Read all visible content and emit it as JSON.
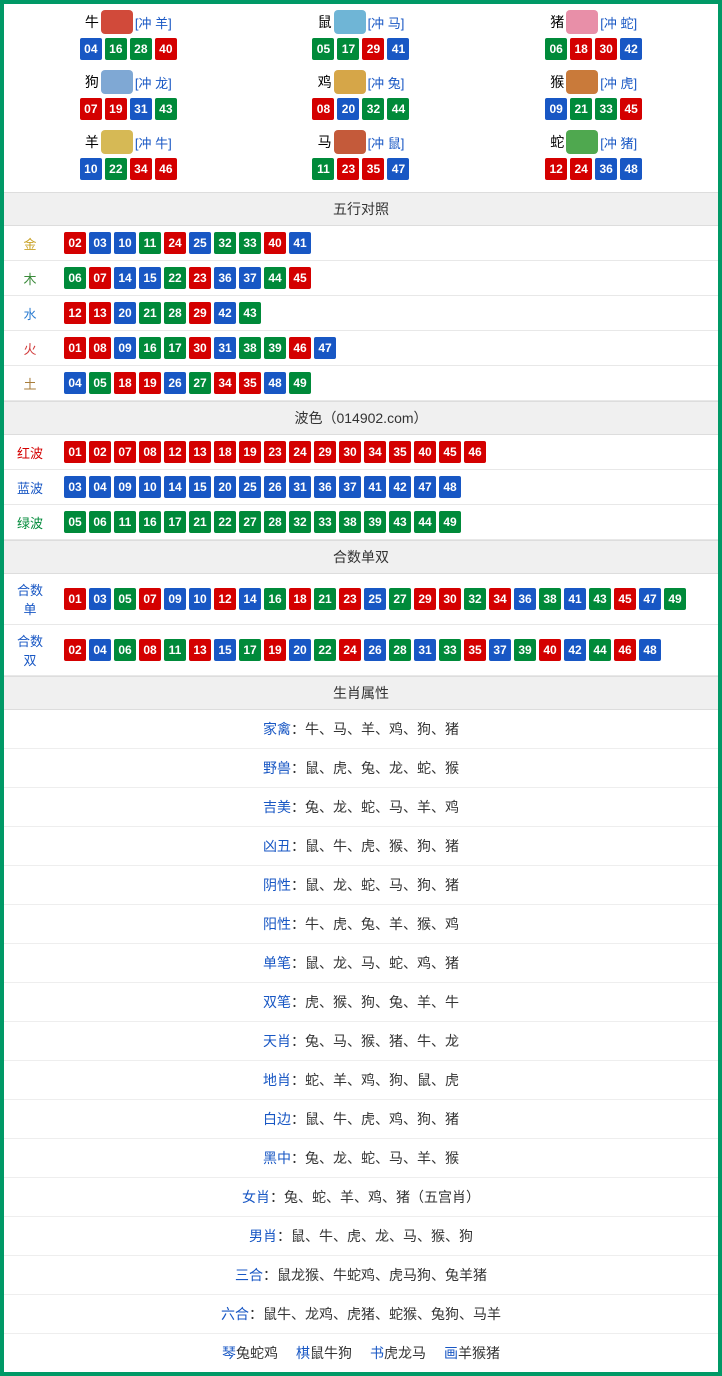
{
  "colors": {
    "red": "#d40000",
    "blue": "#1857c4",
    "green": "#008a3a",
    "border": "#009966",
    "section_bg": "#f0f0f0",
    "label_link": "#1857c4"
  },
  "number_color_map": {
    "01": "red",
    "02": "red",
    "07": "red",
    "08": "red",
    "12": "red",
    "13": "red",
    "18": "red",
    "19": "red",
    "23": "red",
    "24": "red",
    "29": "red",
    "30": "red",
    "34": "red",
    "35": "red",
    "40": "red",
    "45": "red",
    "46": "red",
    "03": "blue",
    "04": "blue",
    "09": "blue",
    "10": "blue",
    "14": "blue",
    "15": "blue",
    "20": "blue",
    "25": "blue",
    "26": "blue",
    "31": "blue",
    "36": "blue",
    "37": "blue",
    "41": "blue",
    "42": "blue",
    "47": "blue",
    "48": "blue",
    "05": "green",
    "06": "green",
    "11": "green",
    "16": "green",
    "17": "green",
    "21": "green",
    "22": "green",
    "27": "green",
    "28": "green",
    "32": "green",
    "33": "green",
    "38": "green",
    "39": "green",
    "43": "green",
    "44": "green",
    "49": "green"
  },
  "zodiac": [
    {
      "name": "牛",
      "icon_color": "#d14a3a",
      "conflict": "[冲 羊]",
      "nums": [
        "04",
        "16",
        "28",
        "40"
      ]
    },
    {
      "name": "鼠",
      "icon_color": "#6fb5d6",
      "conflict": "[冲 马]",
      "nums": [
        "05",
        "17",
        "29",
        "41"
      ]
    },
    {
      "name": "猪",
      "icon_color": "#e88fa8",
      "conflict": "[冲 蛇]",
      "nums": [
        "06",
        "18",
        "30",
        "42"
      ]
    },
    {
      "name": "狗",
      "icon_color": "#7fa8d4",
      "conflict": "[冲 龙]",
      "nums": [
        "07",
        "19",
        "31",
        "43"
      ]
    },
    {
      "name": "鸡",
      "icon_color": "#d6a648",
      "conflict": "[冲 兔]",
      "nums": [
        "08",
        "20",
        "32",
        "44"
      ]
    },
    {
      "name": "猴",
      "icon_color": "#c97a3a",
      "conflict": "[冲 虎]",
      "nums": [
        "09",
        "21",
        "33",
        "45"
      ]
    },
    {
      "name": "羊",
      "icon_color": "#d6b955",
      "conflict": "[冲 牛]",
      "nums": [
        "10",
        "22",
        "34",
        "46"
      ]
    },
    {
      "name": "马",
      "icon_color": "#c45a3a",
      "conflict": "[冲 鼠]",
      "nums": [
        "11",
        "23",
        "35",
        "47"
      ]
    },
    {
      "name": "蛇",
      "icon_color": "#4fa84f",
      "conflict": "[冲 猪]",
      "nums": [
        "12",
        "24",
        "36",
        "48"
      ]
    }
  ],
  "wuxing": {
    "title": "五行对照",
    "rows": [
      {
        "label": "金",
        "label_color": "#c9a227",
        "nums": [
          "02",
          "03",
          "10",
          "11",
          "24",
          "25",
          "32",
          "33",
          "40",
          "41"
        ]
      },
      {
        "label": "木",
        "label_color": "#3a8a3a",
        "nums": [
          "06",
          "07",
          "14",
          "15",
          "22",
          "23",
          "36",
          "37",
          "44",
          "45"
        ]
      },
      {
        "label": "水",
        "label_color": "#2a7bd1",
        "nums": [
          "12",
          "13",
          "20",
          "21",
          "28",
          "29",
          "42",
          "43"
        ]
      },
      {
        "label": "火",
        "label_color": "#d13a3a",
        "nums": [
          "01",
          "08",
          "09",
          "16",
          "17",
          "30",
          "31",
          "38",
          "39",
          "46",
          "47"
        ]
      },
      {
        "label": "土",
        "label_color": "#a87c3a",
        "nums": [
          "04",
          "05",
          "18",
          "19",
          "26",
          "27",
          "34",
          "35",
          "48",
          "49"
        ]
      }
    ]
  },
  "bose": {
    "title": "波色（014902.com）",
    "rows": [
      {
        "label": "红波",
        "label_color": "#d40000",
        "nums": [
          "01",
          "02",
          "07",
          "08",
          "12",
          "13",
          "18",
          "19",
          "23",
          "24",
          "29",
          "30",
          "34",
          "35",
          "40",
          "45",
          "46"
        ]
      },
      {
        "label": "蓝波",
        "label_color": "#1857c4",
        "nums": [
          "03",
          "04",
          "09",
          "10",
          "14",
          "15",
          "20",
          "25",
          "26",
          "31",
          "36",
          "37",
          "41",
          "42",
          "47",
          "48"
        ]
      },
      {
        "label": "绿波",
        "label_color": "#008a3a",
        "nums": [
          "05",
          "06",
          "11",
          "16",
          "17",
          "21",
          "22",
          "27",
          "28",
          "32",
          "33",
          "38",
          "39",
          "43",
          "44",
          "49"
        ]
      }
    ]
  },
  "heshu": {
    "title": "合数单双",
    "rows": [
      {
        "label": "合数单",
        "label_color": "#1857c4",
        "nums": [
          "01",
          "03",
          "05",
          "07",
          "09",
          "10",
          "12",
          "14",
          "16",
          "18",
          "21",
          "23",
          "25",
          "27",
          "29",
          "30",
          "32",
          "34",
          "36",
          "38",
          "41",
          "43",
          "45",
          "47",
          "49"
        ]
      },
      {
        "label": "合数双",
        "label_color": "#1857c4",
        "nums": [
          "02",
          "04",
          "06",
          "08",
          "11",
          "13",
          "15",
          "17",
          "19",
          "20",
          "22",
          "24",
          "26",
          "28",
          "31",
          "33",
          "35",
          "37",
          "39",
          "40",
          "42",
          "44",
          "46",
          "48"
        ]
      }
    ]
  },
  "attributes": {
    "title": "生肖属性",
    "rows": [
      {
        "label": "家禽",
        "text": "：牛、马、羊、鸡、狗、猪"
      },
      {
        "label": "野兽",
        "text": "：鼠、虎、兔、龙、蛇、猴"
      },
      {
        "label": "吉美",
        "text": "：兔、龙、蛇、马、羊、鸡"
      },
      {
        "label": "凶丑",
        "text": "：鼠、牛、虎、猴、狗、猪"
      },
      {
        "label": "阴性",
        "text": "：鼠、龙、蛇、马、狗、猪"
      },
      {
        "label": "阳性",
        "text": "：牛、虎、兔、羊、猴、鸡"
      },
      {
        "label": "单笔",
        "text": "：鼠、龙、马、蛇、鸡、猪"
      },
      {
        "label": "双笔",
        "text": "：虎、猴、狗、兔、羊、牛"
      },
      {
        "label": "天肖",
        "text": "：兔、马、猴、猪、牛、龙"
      },
      {
        "label": "地肖",
        "text": "：蛇、羊、鸡、狗、鼠、虎"
      },
      {
        "label": "白边",
        "text": "：鼠、牛、虎、鸡、狗、猪"
      },
      {
        "label": "黑中",
        "text": "：兔、龙、蛇、马、羊、猴"
      },
      {
        "label": "女肖",
        "text": "：兔、蛇、羊、鸡、猪（五宫肖）"
      },
      {
        "label": "男肖",
        "text": "：鼠、牛、虎、龙、马、猴、狗"
      },
      {
        "label": "三合",
        "text": "：鼠龙猴、牛蛇鸡、虎马狗、兔羊猪"
      },
      {
        "label": "六合",
        "text": "：鼠牛、龙鸡、虎猪、蛇猴、兔狗、马羊"
      }
    ],
    "bottom": [
      {
        "label": "琴",
        "text": "兔蛇鸡"
      },
      {
        "label": "棋",
        "text": "鼠牛狗"
      },
      {
        "label": "书",
        "text": "虎龙马"
      },
      {
        "label": "画",
        "text": "羊猴猪"
      }
    ]
  }
}
